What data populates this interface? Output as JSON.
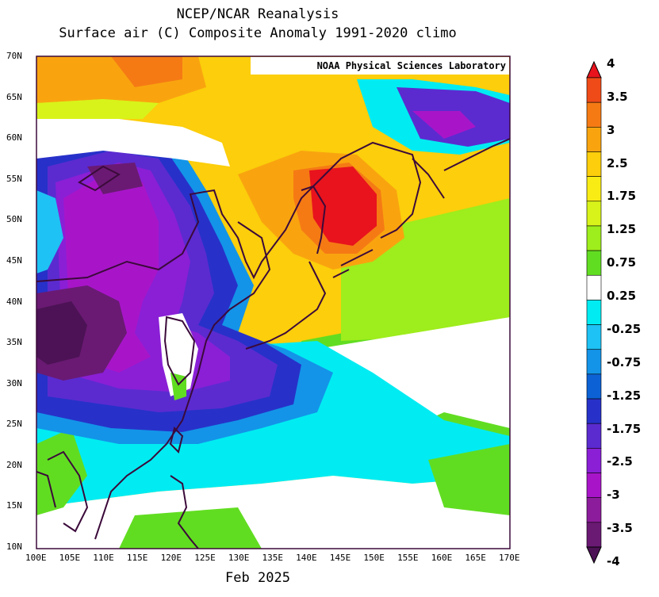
{
  "title_line1": "NCEP/NCAR Reanalysis",
  "title_line2": "Surface air (C) Composite Anomaly 1991-2020 climo",
  "credit": "NOAA Physical Sciences Laboratory",
  "period_label": "Feb 2025",
  "lat_labels": [
    "70N",
    "65N",
    "60N",
    "55N",
    "50N",
    "45N",
    "40N",
    "35N",
    "30N",
    "25N",
    "20N",
    "15N",
    "10N"
  ],
  "lon_labels": [
    "100E",
    "105E",
    "110E",
    "115E",
    "120E",
    "125E",
    "130E",
    "135E",
    "140E",
    "145E",
    "150E",
    "155E",
    "160E",
    "165E",
    "170E"
  ],
  "colorbar": {
    "labels": [
      "4",
      "3.5",
      "3",
      "2.5",
      "1.75",
      "1.25",
      "0.75",
      "0.25",
      "-0.25",
      "-0.75",
      "-1.25",
      "-1.75",
      "-2.5",
      "-3",
      "-3.5",
      "-4"
    ],
    "colors": [
      "#e8131d",
      "#ef4b19",
      "#f57a14",
      "#f9a40f",
      "#fcce0b",
      "#f8ec14",
      "#d8f31a",
      "#9eed1c",
      "#61dd21",
      "#ffffff",
      "#00ecf2",
      "#1ec2f4",
      "#1394e8",
      "#0c62d5",
      "#2731c9",
      "#5b2bd0",
      "#8a1fd6",
      "#a815c9",
      "#8c1c9b",
      "#6a1a73",
      "#4c1255"
    ]
  }
}
